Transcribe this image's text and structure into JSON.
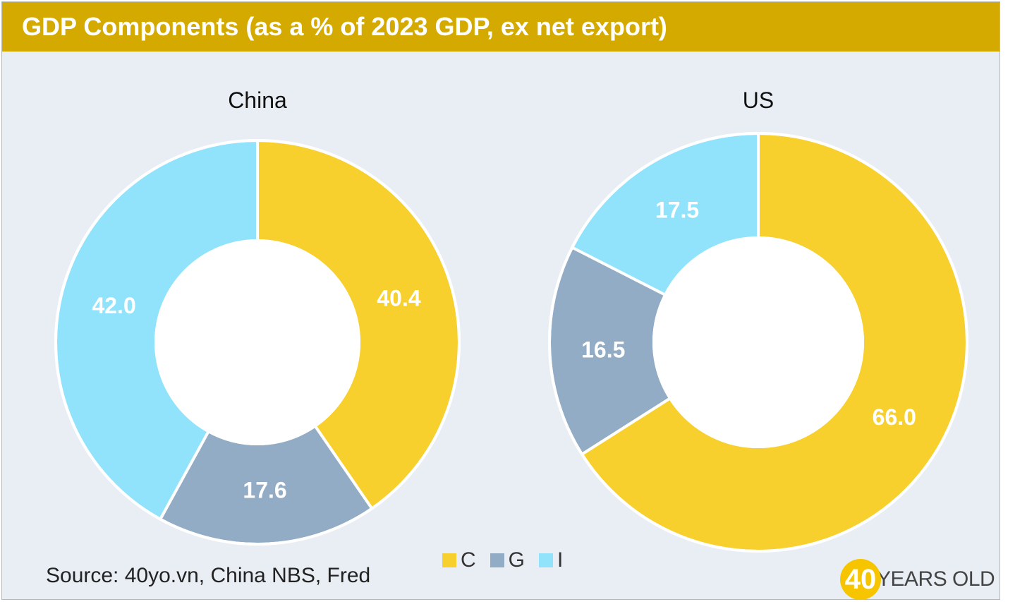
{
  "header": {
    "title": "GDP Components (as a % of 2023 GDP, ex net export)"
  },
  "colors": {
    "C": "#f8d02e",
    "G": "#91acc4",
    "I": "#91e3fc",
    "title_bar": "#d4aa00",
    "background": "#e9eef4"
  },
  "chart_data": [
    {
      "type": "pie",
      "title": "China",
      "categories": [
        "C",
        "G",
        "I"
      ],
      "values": [
        40.4,
        17.6,
        42.0
      ],
      "labels": [
        "40.4",
        "17.6",
        "42.0"
      ]
    },
    {
      "type": "pie",
      "title": "US",
      "categories": [
        "C",
        "G",
        "I"
      ],
      "values": [
        66.0,
        16.5,
        17.5
      ],
      "labels": [
        "66.0",
        "16.5",
        "17.5"
      ]
    }
  ],
  "legend": {
    "placement": "bottom-center",
    "items": [
      {
        "label": "C",
        "color": "#f8d02e"
      },
      {
        "label": "G",
        "color": "#91acc4"
      },
      {
        "label": "I",
        "color": "#91e3fc"
      }
    ]
  },
  "footer": {
    "source": "Source: 40yo.vn, China NBS, Fred",
    "logo_number": "40",
    "logo_text": "YEARS OLD"
  }
}
